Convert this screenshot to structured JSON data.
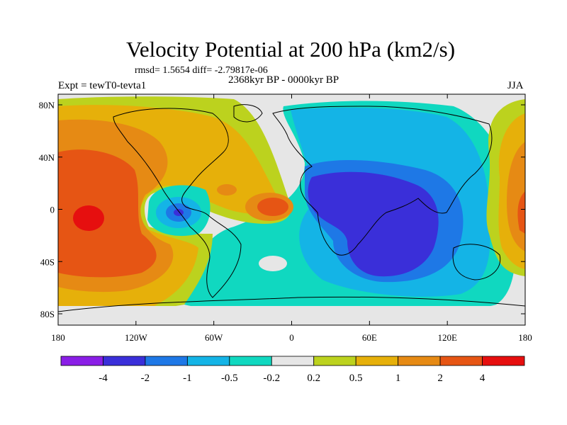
{
  "title": "Velocity Potential at 200 hPa (km2/s)",
  "stats": "rmsd= 1.5654 diff= -2.79817e-06",
  "period": "2368kyr BP - 0000kyr BP",
  "experiment": "Expt = tewT0-tevta1",
  "season": "JJA",
  "lon_ticks": [
    "180",
    "120W",
    "60W",
    "0",
    "60E",
    "120E",
    "180"
  ],
  "lat_ticks": [
    "80N",
    "40N",
    "0",
    "40S",
    "80S"
  ],
  "colorbar": {
    "labels": [
      "-4",
      "-2",
      "-1",
      "-0.5",
      "-0.2",
      "0.2",
      "0.5",
      "1",
      "2",
      "4"
    ],
    "colors": [
      "#8a1ee6",
      "#3a2fd9",
      "#1e78e6",
      "#14b4e6",
      "#10d8c0",
      "#e6e6e6",
      "#bcd21e",
      "#e6b00a",
      "#e68a14",
      "#e65514",
      "#e60f0f"
    ]
  }
}
